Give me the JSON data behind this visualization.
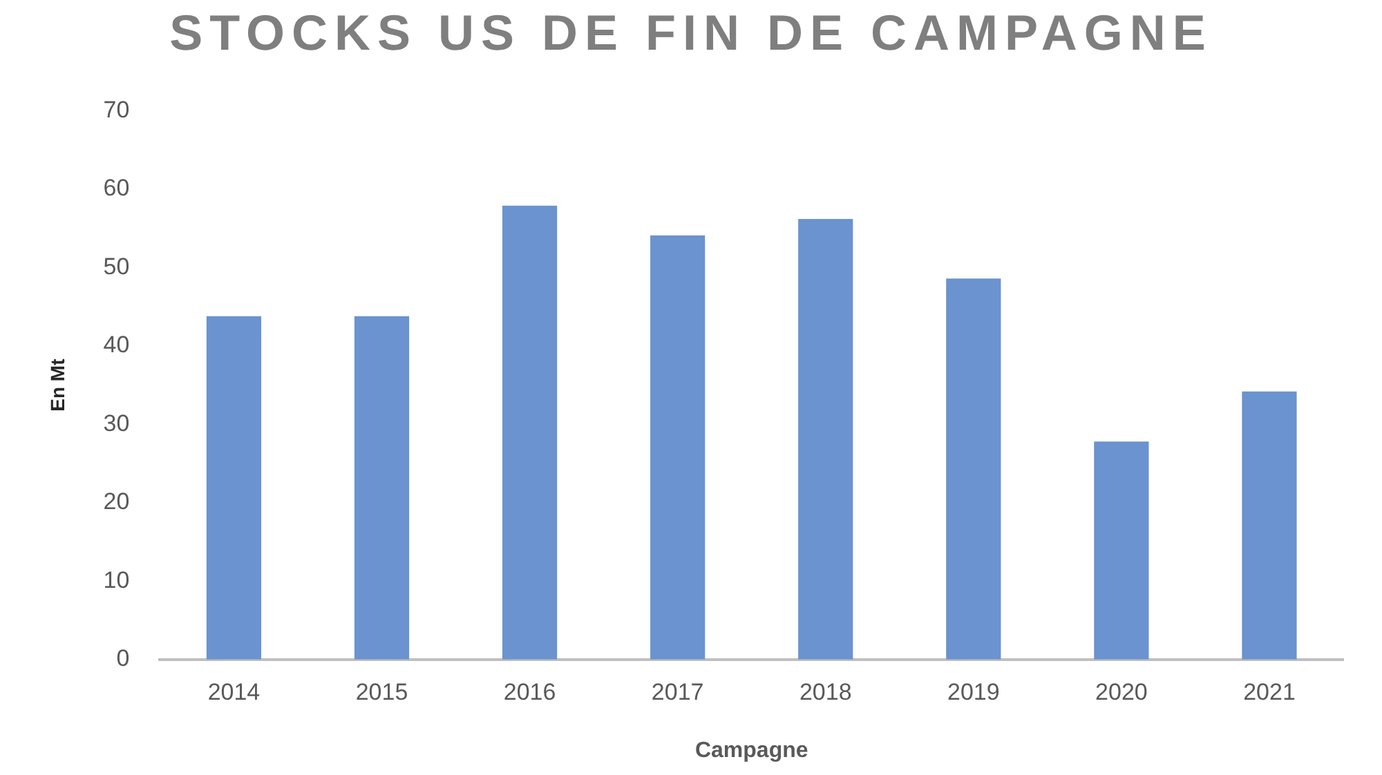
{
  "chart_data": {
    "type": "bar",
    "title": "STOCKS US DE FIN DE CAMPAGNE",
    "xlabel": "Campagne",
    "ylabel": "En Mt",
    "categories": [
      "2014",
      "2015",
      "2016",
      "2017",
      "2018",
      "2019",
      "2020",
      "2021"
    ],
    "values": [
      43.8,
      43.8,
      57.9,
      54.1,
      56.2,
      48.6,
      27.8,
      34.2
    ],
    "color": "#6a93cf",
    "ylim": [
      0,
      70
    ],
    "yticks": [
      0,
      10,
      20,
      30,
      40,
      50,
      60,
      70
    ]
  }
}
